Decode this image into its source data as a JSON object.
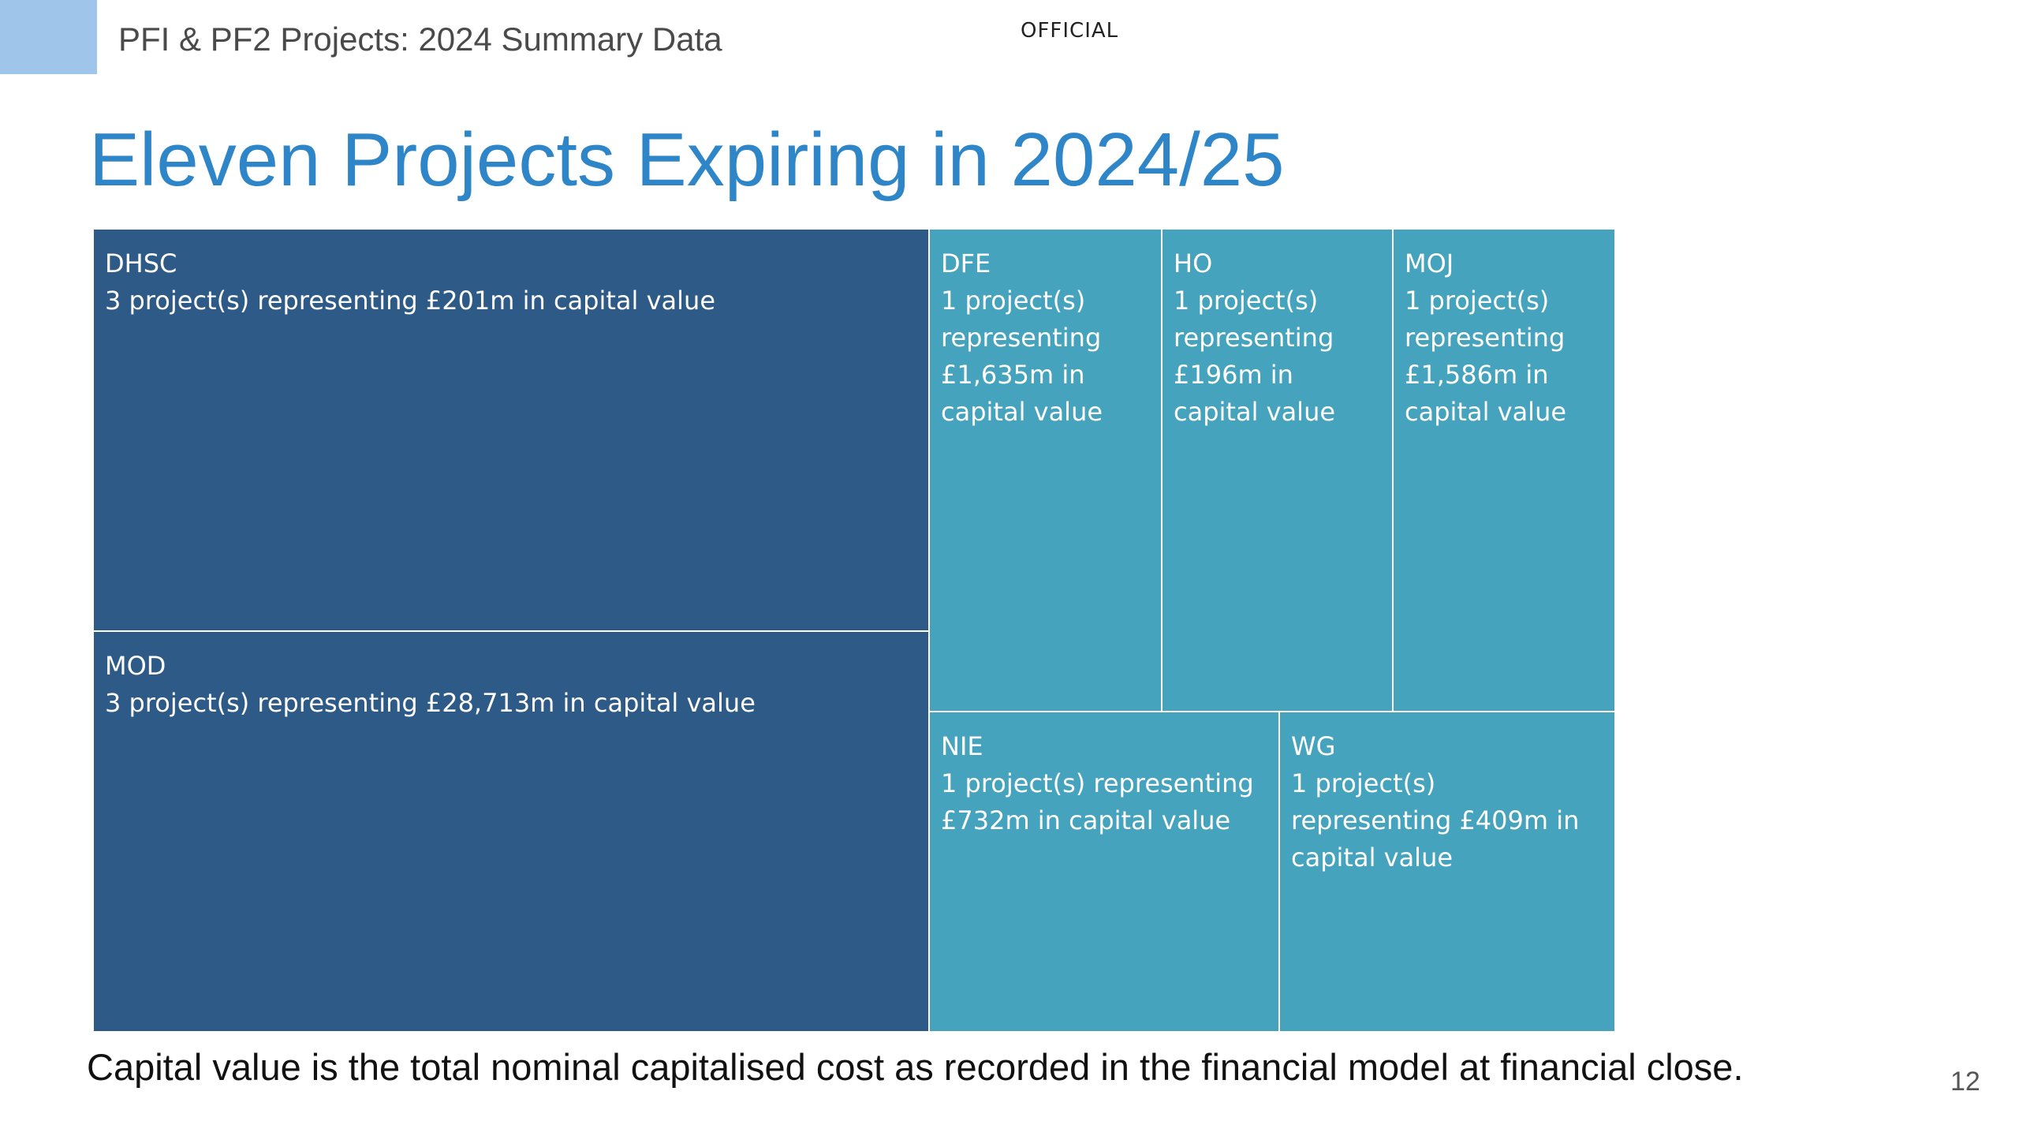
{
  "header": {
    "title": "PFI & PF2 Projects: 2024 Summary Data",
    "classification": "OFFICIAL"
  },
  "title": "Eleven Projects Expiring in 2024/25",
  "footnote": "Capital value is the total nominal capitalised cost as recorded in the financial model at financial close.",
  "page_number": "12",
  "colors": {
    "dark_tile": "#2d5a86",
    "light_tile": "#45a3bd",
    "title": "#2e86c8",
    "corner": "#9fc5ea"
  },
  "chart_data": {
    "type": "treemap",
    "title": "Eleven Projects Expiring in 2024/25",
    "tiles": [
      {
        "name": "DHSC",
        "projects": 3,
        "capital_value_m": 201,
        "label": "3 project(s) representing £201m in capital value",
        "color": "#2d5a86"
      },
      {
        "name": "MOD",
        "projects": 3,
        "capital_value_m": 28713,
        "label": "3 project(s) representing £28,713m in capital value",
        "color": "#2d5a86"
      },
      {
        "name": "DFE",
        "projects": 1,
        "capital_value_m": 1635,
        "label": "1 project(s) representing £1,635m in capital value",
        "color": "#45a3bd"
      },
      {
        "name": "HO",
        "projects": 1,
        "capital_value_m": 196,
        "label": "1 project(s) representing £196m in capital value",
        "color": "#45a3bd"
      },
      {
        "name": "MOJ",
        "projects": 1,
        "capital_value_m": 1586,
        "label": "1 project(s) representing £1,586m in capital value",
        "color": "#45a3bd"
      },
      {
        "name": "NIE",
        "projects": 1,
        "capital_value_m": 732,
        "label": "1 project(s) representing £732m in capital value",
        "color": "#45a3bd"
      },
      {
        "name": "WG",
        "projects": 1,
        "capital_value_m": 409,
        "label": "1 project(s) representing £409m in capital value",
        "color": "#45a3bd"
      }
    ]
  }
}
